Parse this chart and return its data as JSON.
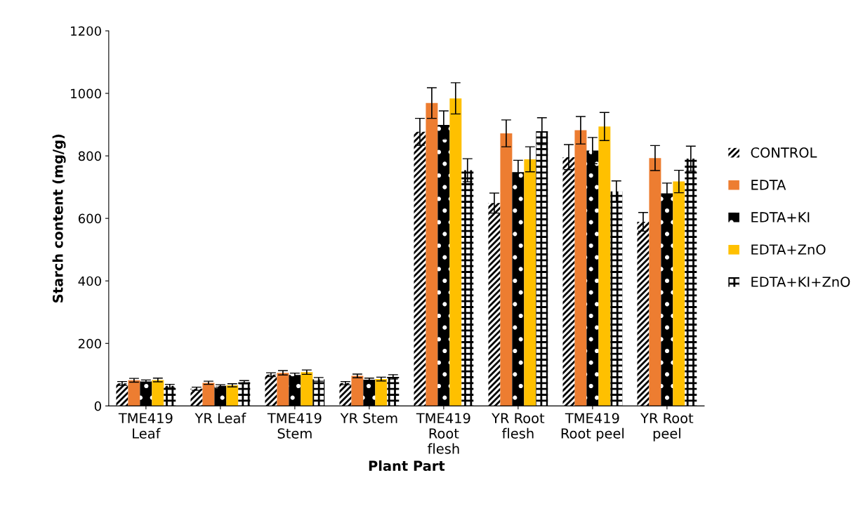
{
  "chart_data": {
    "type": "bar",
    "xlabel": "Plant Part",
    "ylabel": "Starch content (mg/g)",
    "categories": [
      "TME419\nLeaf",
      "YR Leaf",
      "TME419\nStem",
      "YR Stem",
      "TME419\nRoot\nflesh",
      "YR Root\nflesh",
      "TME419\nRoot peel",
      "YR Root\npeel"
    ],
    "ylim": [
      0,
      1200
    ],
    "yticks": [
      0,
      200,
      400,
      600,
      800,
      1000,
      1200
    ],
    "grid": false,
    "legend": "right",
    "series": [
      {
        "name": "CONTROL",
        "color": "#ffffff",
        "values": [
          72,
          55,
          100,
          73,
          877,
          649,
          796,
          589
        ],
        "errors": [
          6,
          5,
          6,
          5,
          43,
          32,
          40,
          30
        ]
      },
      {
        "name": "EDTA",
        "color": "#ed7d31",
        "values": [
          82,
          74,
          106,
          96,
          969,
          872,
          882,
          793
        ],
        "errors": [
          6,
          5,
          7,
          6,
          49,
          43,
          44,
          40
        ]
      },
      {
        "name": "EDTA+KI",
        "color": "#000000",
        "values": [
          78,
          64,
          99,
          84,
          899,
          748,
          817,
          680
        ],
        "errors": [
          5,
          4,
          6,
          5,
          45,
          38,
          42,
          33
        ]
      },
      {
        "name": "EDTA+ZnO",
        "color": "#ffc000",
        "values": [
          83,
          66,
          108,
          86,
          984,
          789,
          894,
          718
        ],
        "errors": [
          6,
          5,
          7,
          6,
          50,
          40,
          45,
          36
        ]
      },
      {
        "name": "EDTA+KI+ZnO",
        "color": "#ffffff",
        "values": [
          64,
          76,
          85,
          93,
          754,
          879,
          686,
          791
        ],
        "errors": [
          5,
          5,
          6,
          7,
          37,
          43,
          34,
          40
        ]
      }
    ]
  }
}
